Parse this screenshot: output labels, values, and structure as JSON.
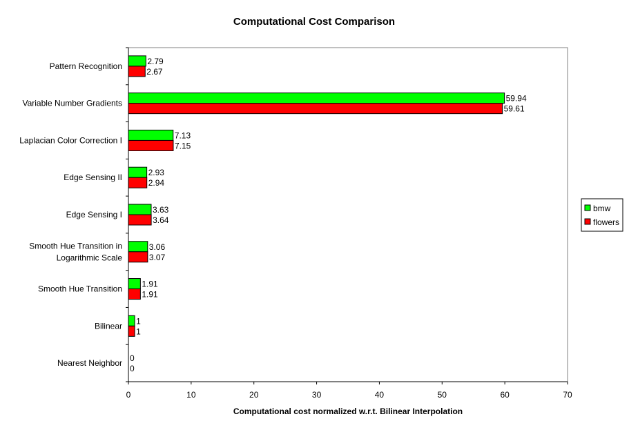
{
  "chart_data": {
    "type": "bar",
    "orientation": "horizontal",
    "title": "Computational Cost Comparison",
    "xlabel": "Computational cost normalized w.r.t. Bilinear Interpolation",
    "ylabel": "",
    "xlim": [
      0,
      70
    ],
    "xticks": [
      0,
      10,
      20,
      30,
      40,
      50,
      60,
      70
    ],
    "xtick_labels": [
      "0",
      "10",
      "20",
      "30",
      "40",
      "50",
      "60",
      "70"
    ],
    "grid": false,
    "legend_position": "right",
    "categories": [
      [
        "Pattern Recognition"
      ],
      [
        "Variable Number Gradients"
      ],
      [
        "Laplacian Color Correction I"
      ],
      [
        "Edge Sensing II"
      ],
      [
        "Edge Sensing I"
      ],
      [
        "Smooth Hue Transition in",
        "Logarithmic Scale"
      ],
      [
        "Smooth Hue Transition"
      ],
      [
        "Bilinear"
      ],
      [
        "Nearest Neighbor"
      ]
    ],
    "series": [
      {
        "name": "bmw",
        "color": "#00ff00",
        "values": [
          2.79,
          59.94,
          7.13,
          2.93,
          3.63,
          3.06,
          1.91,
          1,
          0
        ],
        "labels": [
          "2.79",
          "59.94",
          "7.13",
          "2.93",
          "3.63",
          "3.06",
          "1.91",
          "1",
          "0"
        ]
      },
      {
        "name": "flowers",
        "color": "#ff0000",
        "values": [
          2.67,
          59.61,
          7.15,
          2.94,
          3.64,
          3.07,
          1.91,
          1,
          0
        ],
        "labels": [
          "2.67",
          "59.61",
          "7.15",
          "2.94",
          "3.64",
          "3.07",
          "1.91",
          "1",
          "0"
        ]
      }
    ]
  }
}
